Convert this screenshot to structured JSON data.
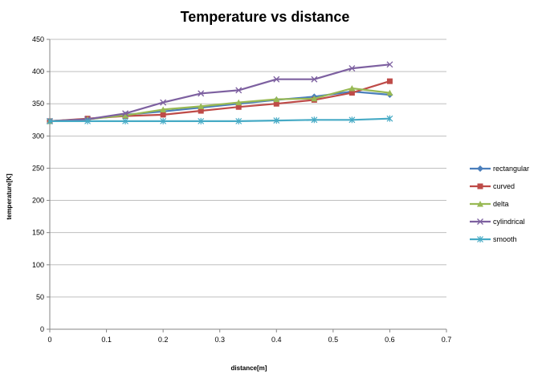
{
  "chart_data": {
    "type": "line",
    "title": "Temperature vs distance",
    "xlabel": "distance[m]",
    "ylabel": "temperature[K]",
    "xlim": [
      0,
      0.7
    ],
    "ylim": [
      0,
      450
    ],
    "xticks": [
      "0",
      "0.1",
      "0.2",
      "0.3",
      "0.4",
      "0.5",
      "0.6",
      "0.7"
    ],
    "yticks": [
      "0",
      "50",
      "100",
      "150",
      "200",
      "250",
      "300",
      "350",
      "400",
      "450"
    ],
    "grid": "horizontal",
    "legend_position": "right",
    "x": [
      0,
      0.0667,
      0.1333,
      0.2,
      0.2667,
      0.3333,
      0.4,
      0.4667,
      0.5333,
      0.6
    ],
    "series": [
      {
        "name": "rectangular",
        "color": "#4a7ebb",
        "marker": "diamond",
        "values": [
          323,
          326,
          333,
          338,
          344,
          350,
          356,
          361,
          369,
          364
        ]
      },
      {
        "name": "curved",
        "color": "#be4b48",
        "marker": "square",
        "values": [
          323,
          327,
          331,
          333,
          339,
          345,
          350,
          356,
          367,
          385
        ]
      },
      {
        "name": "delta",
        "color": "#98b954",
        "marker": "triangle",
        "values": [
          323,
          326,
          332,
          341,
          346,
          352,
          357,
          358,
          374,
          367
        ]
      },
      {
        "name": "cylindrical",
        "color": "#7d60a0",
        "marker": "x",
        "values": [
          323,
          326,
          335,
          352,
          366,
          371,
          388,
          388,
          405,
          411
        ]
      },
      {
        "name": "smooth",
        "color": "#46aac5",
        "marker": "star",
        "values": [
          323,
          323,
          323,
          323,
          323,
          323,
          324,
          325,
          325,
          327
        ]
      }
    ]
  }
}
